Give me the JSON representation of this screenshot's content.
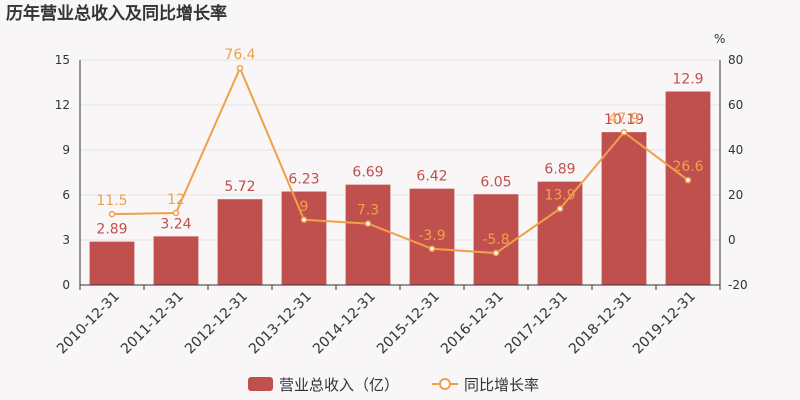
{
  "title": "历年营业总收入及同比增长率",
  "chart_data": {
    "type": "bar+line",
    "categories": [
      "2010-12-31",
      "2011-12-31",
      "2012-12-31",
      "2013-12-31",
      "2014-12-31",
      "2015-12-31",
      "2016-12-31",
      "2017-12-31",
      "2018-12-31",
      "2019-12-31"
    ],
    "series": [
      {
        "name": "营业总收入（亿）",
        "type": "bar",
        "axis": "left",
        "color": "#c0504d",
        "values": [
          2.89,
          3.24,
          5.72,
          6.23,
          6.69,
          6.42,
          6.05,
          6.89,
          10.19,
          12.9
        ]
      },
      {
        "name": "同比增长率",
        "type": "line",
        "axis": "right",
        "color": "#f0a04b",
        "values": [
          11.5,
          12,
          76.4,
          9,
          7.3,
          -3.9,
          -5.8,
          13.9,
          47.9,
          26.6
        ]
      }
    ],
    "yleft": {
      "min": 0,
      "max": 15,
      "ticks": [
        0,
        3,
        6,
        9,
        12,
        15
      ]
    },
    "yright": {
      "min": -20,
      "max": 80,
      "ticks": [
        -20,
        0,
        20,
        40,
        60,
        80
      ],
      "unit": "%"
    },
    "legend_position": "bottom-center",
    "grid": true
  }
}
